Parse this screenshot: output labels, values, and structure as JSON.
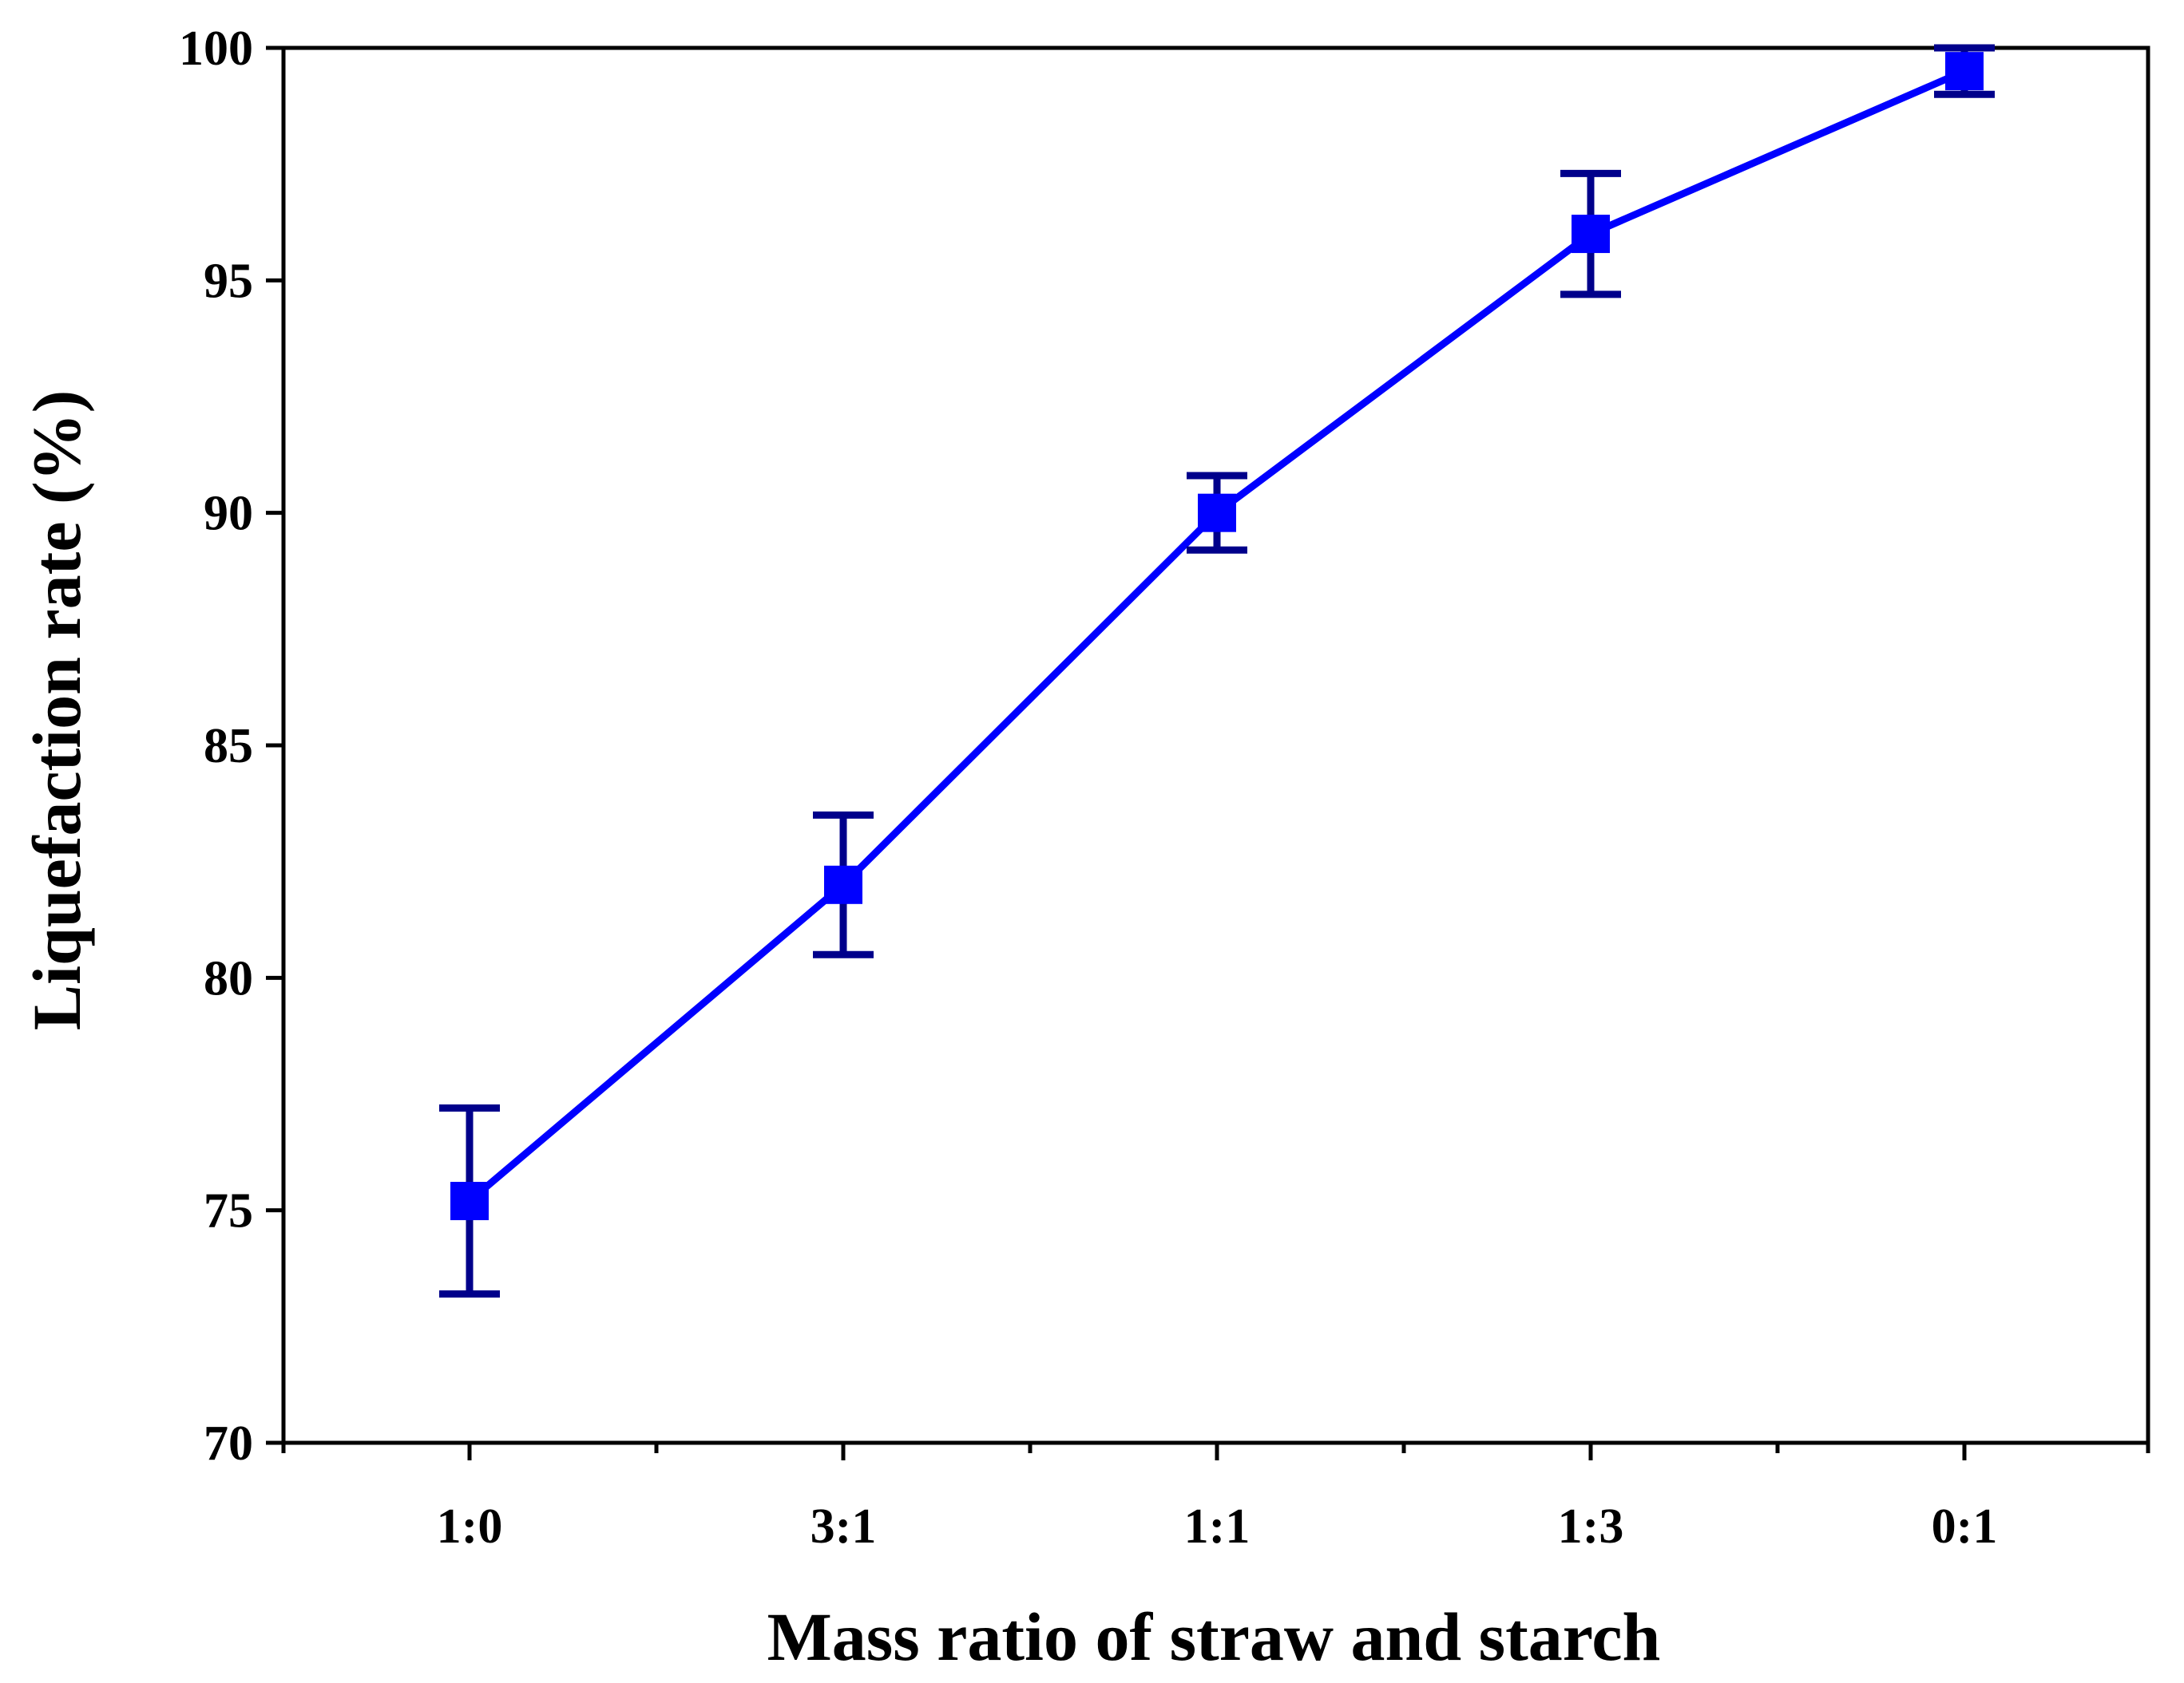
{
  "chart_data": {
    "type": "line",
    "title": "",
    "xlabel": "Mass ratio of straw and starch",
    "ylabel": "Liquefaction rate (%)",
    "categories": [
      "1:0",
      "3:1",
      "1:1",
      "1:3",
      "0:1"
    ],
    "ylim": [
      70,
      100
    ],
    "yticks": [
      "70",
      "75",
      "80",
      "85",
      "90",
      "95",
      "100"
    ],
    "series": [
      {
        "name": "Liquefaction rate",
        "values": [
          75.2,
          82.0,
          90.0,
          96.0,
          99.5
        ],
        "errors": [
          2.0,
          1.5,
          0.8,
          1.3,
          0.5
        ],
        "line_color": "#0000ff",
        "marker_color": "#0000ff",
        "errorbar_color": "#00008b",
        "marker": "square"
      }
    ],
    "grid": false,
    "legend": "none"
  }
}
